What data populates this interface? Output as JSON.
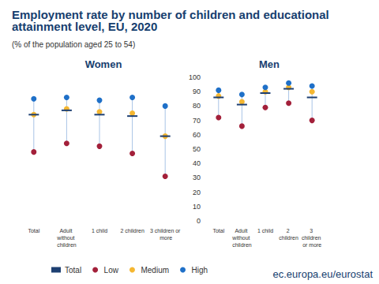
{
  "title": "Employment rate by number of children and educational attainment level, EU, 2020",
  "subtitle": "(% of the population aged 25 to 54)",
  "source": "ec.europa.eu/eurostat",
  "chart_data": [
    {
      "type": "scatter",
      "title": "Women",
      "categories": [
        "Total",
        "Adult without children",
        "1 child",
        "2 children",
        "3 children or more"
      ],
      "ylim": [
        0,
        100
      ],
      "yticks": [
        0,
        10,
        20,
        30,
        40,
        50,
        60,
        70,
        80,
        90,
        100
      ],
      "grid": false,
      "tick_labels": "x",
      "legend": "bottom",
      "series": [
        {
          "name": "Total",
          "color": "#1d3f72",
          "marker": "line",
          "values": [
            74,
            77,
            74,
            73,
            59
          ]
        },
        {
          "name": "Low",
          "color": "#a3203a",
          "marker": "circle",
          "values": [
            48,
            54,
            52,
            47,
            31
          ]
        },
        {
          "name": "Medium",
          "color": "#f5b731",
          "marker": "circle",
          "values": [
            74,
            78,
            76,
            75,
            59
          ]
        },
        {
          "name": "High",
          "color": "#1f70c8",
          "marker": "circle",
          "values": [
            85,
            86,
            84,
            86,
            80
          ]
        }
      ]
    },
    {
      "type": "scatter",
      "title": "Men",
      "categories": [
        "Total",
        "Adult without children",
        "1 child",
        "2 children",
        "3 children or more"
      ],
      "ylim": [
        0,
        100
      ],
      "yticks": [
        0,
        10,
        20,
        30,
        40,
        50,
        60,
        70,
        80,
        90,
        100
      ],
      "grid": false,
      "tick_labels": true,
      "series": [
        {
          "name": "Total",
          "color": "#1d3f72",
          "marker": "line",
          "values": [
            86,
            81,
            89,
            92,
            86
          ]
        },
        {
          "name": "Low",
          "color": "#a3203a",
          "marker": "circle",
          "values": [
            72,
            66,
            79,
            82,
            70
          ]
        },
        {
          "name": "Medium",
          "color": "#f5b731",
          "marker": "circle",
          "values": [
            87,
            83,
            90,
            93,
            90
          ]
        },
        {
          "name": "High",
          "color": "#1f70c8",
          "marker": "circle",
          "values": [
            91,
            88,
            93,
            96,
            94
          ]
        }
      ]
    }
  ]
}
